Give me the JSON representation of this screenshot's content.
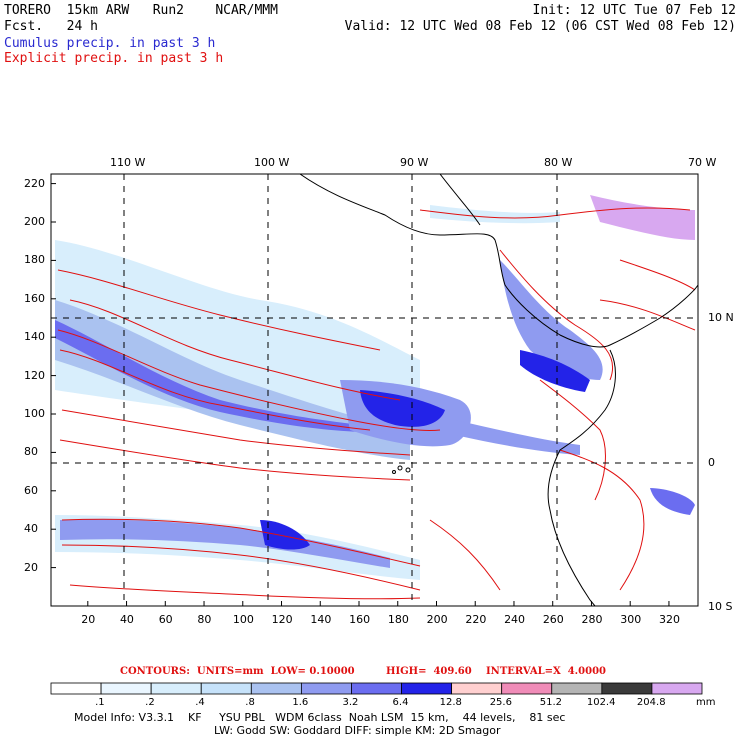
{
  "header": {
    "line1_left": "TORERO  15km ARW   Run2    NCAR/MMM",
    "line1_right": "Init: 12 UTC Tue 07 Feb 12",
    "fcst": "Fcst.   24 h",
    "valid": "Valid: 12 UTC Wed 08 Feb 12 (06 CST Wed 08 Feb 12)",
    "cumulus": "Cumulus precip. in past 3 h",
    "explicit": "Explicit precip. in past 3 h"
  },
  "map": {
    "top_lon_labels": [
      "110 W",
      "100 W",
      "90 W",
      "80 W",
      "70 W"
    ],
    "right_lat_labels": [
      "10 N",
      "0",
      "10 S"
    ],
    "y_ticks": [
      "220",
      "200",
      "180",
      "160",
      "140",
      "120",
      "100",
      "80",
      "60",
      "40",
      "20"
    ],
    "x_ticks": [
      "20",
      "40",
      "60",
      "80",
      "100",
      "120",
      "140",
      "160",
      "180",
      "200",
      "220",
      "240",
      "260",
      "280",
      "300",
      "320"
    ]
  },
  "contour_info": {
    "contours": "CONTOURS:  UNITS=mm  LOW= 0.10000",
    "high": "HIGH=  409.60",
    "interval": "INTERVAL=X  4.0000"
  },
  "colorbar": {
    "labels": [
      ".1",
      ".2",
      ".4",
      ".8",
      "1.6",
      "3.2",
      "6.4",
      "12.8",
      "25.6",
      "51.2",
      "102.4",
      "204.8"
    ],
    "unit": "mm",
    "colors": [
      "#ffffff",
      "#eaf6ff",
      "#d8eefc",
      "#c6e2fa",
      "#aac2f0",
      "#8f9bf0",
      "#6b6df0",
      "#2323e8",
      "#ffd0d0",
      "#f08cb8",
      "#b4b4b4",
      "#3a3a3a",
      "#d8a8f0"
    ]
  },
  "model_info": {
    "line1": "Model Info: V3.3.1    KF     YSU PBL   WDM 6class  Noah LSM  15 km,    44 levels,    81 sec",
    "line2": "LW: Godd SW: Goddard DIFF: simple KM: 2D Smagor"
  }
}
